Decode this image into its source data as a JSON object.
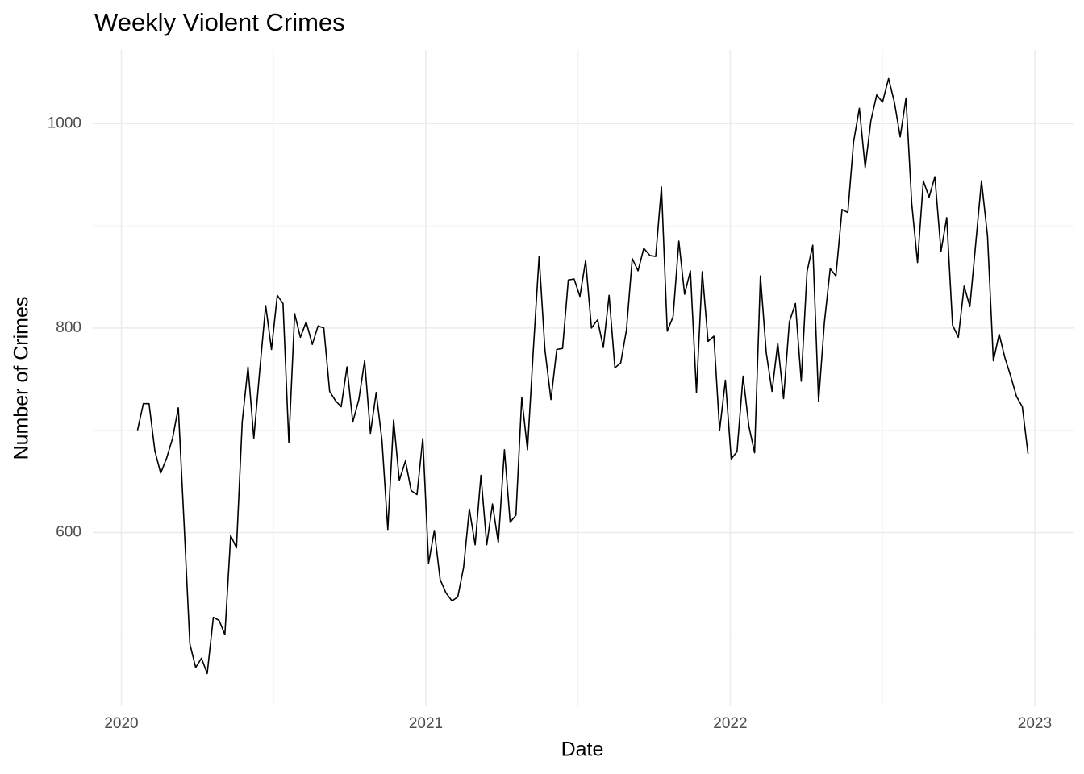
{
  "chart_data": {
    "type": "line",
    "title": "Weekly Violent Crimes",
    "x_label": "Date",
    "y_label": "Number of Crimes",
    "x": [
      2020.053,
      2020.072,
      2020.091,
      2020.11,
      2020.129,
      2020.149,
      2020.168,
      2020.187,
      2020.206,
      2020.225,
      2020.244,
      2020.263,
      2020.282,
      2020.302,
      2020.321,
      2020.34,
      2020.359,
      2020.378,
      2020.397,
      2020.416,
      2020.435,
      2020.455,
      2020.474,
      2020.493,
      2020.512,
      2020.531,
      2020.55,
      2020.569,
      2020.588,
      2020.607,
      2020.627,
      2020.646,
      2020.665,
      2020.684,
      2020.703,
      2020.722,
      2020.741,
      2020.76,
      2020.78,
      2020.799,
      2020.818,
      2020.837,
      2020.856,
      2020.875,
      2020.894,
      2020.913,
      2020.933,
      2020.952,
      2020.971,
      2020.99,
      2021.009,
      2021.028,
      2021.047,
      2021.066,
      2021.086,
      2021.105,
      2021.124,
      2021.143,
      2021.162,
      2021.181,
      2021.2,
      2021.219,
      2021.238,
      2021.258,
      2021.277,
      2021.296,
      2021.315,
      2021.334,
      2021.353,
      2021.372,
      2021.391,
      2021.411,
      2021.43,
      2021.449,
      2021.468,
      2021.487,
      2021.506,
      2021.525,
      2021.544,
      2021.564,
      2021.583,
      2021.602,
      2021.621,
      2021.64,
      2021.659,
      2021.678,
      2021.697,
      2021.716,
      2021.736,
      2021.755,
      2021.774,
      2021.793,
      2021.812,
      2021.831,
      2021.85,
      2021.869,
      2021.889,
      2021.908,
      2021.927,
      2021.946,
      2021.965,
      2021.984,
      2022.003,
      2022.022,
      2022.042,
      2022.061,
      2022.08,
      2022.099,
      2022.118,
      2022.137,
      2022.156,
      2022.175,
      2022.194,
      2022.214,
      2022.233,
      2022.252,
      2022.271,
      2022.29,
      2022.309,
      2022.328,
      2022.347,
      2022.367,
      2022.386,
      2022.405,
      2022.424,
      2022.443,
      2022.462,
      2022.481,
      2022.5,
      2022.52,
      2022.539,
      2022.558,
      2022.577,
      2022.596,
      2022.615,
      2022.634,
      2022.653,
      2022.672,
      2022.692,
      2022.711,
      2022.73,
      2022.749,
      2022.768,
      2022.787,
      2022.806,
      2022.825,
      2022.845,
      2022.864,
      2022.883,
      2022.902,
      2022.921,
      2022.94,
      2022.959,
      2022.978
    ],
    "series": [
      {
        "color": "#000000",
        "values": [
          700,
          726,
          726,
          680,
          658,
          673,
          692,
          722,
          609,
          491,
          468,
          477,
          462,
          517,
          514,
          500,
          597,
          585,
          708,
          762,
          692,
          760,
          822,
          779,
          832,
          824,
          688,
          814,
          791,
          806,
          784,
          802,
          800,
          738,
          729,
          723,
          762,
          708,
          730,
          768,
          697,
          737,
          690,
          603,
          710,
          651,
          670,
          641,
          637,
          692,
          570,
          602,
          554,
          541,
          533,
          537,
          566,
          623,
          588,
          656,
          588,
          628,
          590,
          681,
          610,
          617,
          732,
          681,
          778,
          870,
          779,
          730,
          779,
          780,
          847,
          848,
          831,
          866,
          800,
          808,
          781,
          832,
          761,
          766,
          798,
          868,
          856,
          878,
          871,
          870,
          938,
          797,
          811,
          885,
          833,
          856,
          737,
          855,
          787,
          792,
          700,
          749,
          672,
          679,
          753,
          704,
          678,
          851,
          776,
          738,
          785,
          731,
          806,
          824,
          748,
          855,
          881,
          728,
          805,
          858,
          851,
          916,
          913,
          982,
          1015,
          957,
          1003,
          1028,
          1021,
          1044,
          1021,
          987,
          1025,
          922,
          864,
          944,
          928,
          948,
          875,
          908,
          803,
          791,
          841,
          821,
          882,
          944,
          890,
          768,
          794,
          771,
          753,
          733,
          723,
          677
        ]
      }
    ],
    "xlim": [
      2019.906,
      2023.13
    ],
    "xticks": [
      2020,
      2021,
      2022,
      2023
    ],
    "x_minor_ticks": [
      2020.5,
      2021.5,
      2022.5
    ],
    "ylim": [
      430,
      1072
    ],
    "yticks": [
      600,
      800,
      1000
    ],
    "y_minor_ticks": [
      500,
      700,
      900
    ],
    "grid": true
  }
}
